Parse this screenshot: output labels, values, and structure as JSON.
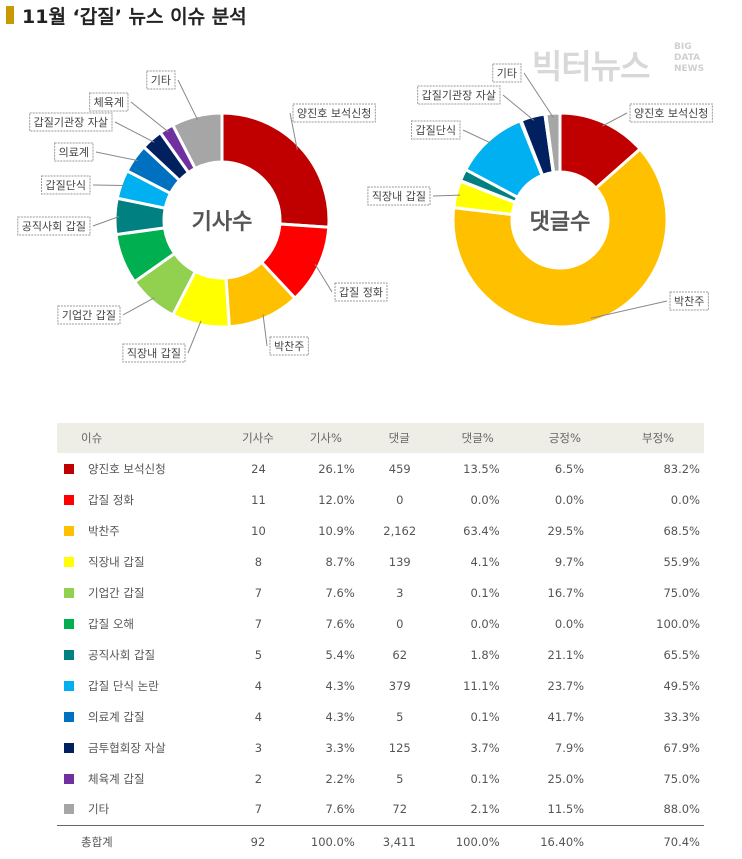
{
  "page": {
    "title": "11월 ‘갑질’ 뉴스 이슈 분석",
    "accent_color": "#c99a00",
    "logo": {
      "text": "빅터뉴스",
      "sub_lines": [
        "BIG",
        "DATA",
        "NEWS"
      ]
    }
  },
  "chart_data": [
    {
      "type": "pie",
      "title": "기사수",
      "donut": true,
      "labels": [
        "양진호 보석신청",
        "갑질 정화",
        "박찬주",
        "직장내 갑질",
        "기업간 갑질",
        "갑질 오해",
        "공직사회 갑질",
        "갑질단식",
        "의료계",
        "갑질기관장 자살",
        "체육계",
        "기타"
      ],
      "callouts": [
        "양진호 보석신청",
        "갑질 정화",
        "박찬주",
        "직장내 갑질",
        "기업간 갑질",
        null,
        "공직사회 갑질",
        "갑질단식",
        "의료계",
        "갑질기관장 자살",
        "체육계",
        "기타"
      ],
      "values": [
        24,
        11,
        10,
        8,
        7,
        7,
        5,
        4,
        4,
        3,
        2,
        7
      ],
      "colors": [
        "#c00000",
        "#ff0000",
        "#ffc000",
        "#ffff00",
        "#92d050",
        "#00b050",
        "#008080",
        "#00b0f0",
        "#0070c0",
        "#002060",
        "#7030a0",
        "#a6a6a6"
      ]
    },
    {
      "type": "pie",
      "title": "댓글수",
      "donut": true,
      "labels": [
        "양진호 보석신청",
        "갑질 정화",
        "박찬주",
        "직장내 갑질",
        "기업간 갑질",
        "갑질 오해",
        "공직사회 갑질",
        "갑질단식",
        "의료계",
        "갑질기관장 자살",
        "체육계",
        "기타"
      ],
      "callouts": [
        "양진호 보석신청",
        null,
        "박찬주",
        "직장내 갑질",
        null,
        null,
        null,
        "갑질단식",
        null,
        "갑질기관장 자살",
        null,
        "기타"
      ],
      "values": [
        459,
        0,
        2162,
        139,
        3,
        0,
        62,
        379,
        5,
        125,
        5,
        72
      ],
      "colors": [
        "#c00000",
        "#ff0000",
        "#ffc000",
        "#ffff00",
        "#92d050",
        "#00b050",
        "#008080",
        "#00b0f0",
        "#0070c0",
        "#002060",
        "#7030a0",
        "#a6a6a6"
      ]
    }
  ],
  "table": {
    "headers": [
      "이슈",
      "기사수",
      "기사%",
      "댓글",
      "댓글%",
      "긍정%",
      "부정%"
    ],
    "rows": [
      {
        "issue": "양진호 보석신청",
        "color": "#c00000",
        "count": "24",
        "count_pct": "26.1%",
        "replies": "459",
        "reply_pct": "13.5%",
        "pos": "6.5%",
        "neg": "83.2%"
      },
      {
        "issue": "갑질 정화",
        "color": "#ff0000",
        "count": "11",
        "count_pct": "12.0%",
        "replies": "0",
        "reply_pct": "0.0%",
        "pos": "0.0%",
        "neg": "0.0%"
      },
      {
        "issue": "박찬주",
        "color": "#ffc000",
        "count": "10",
        "count_pct": "10.9%",
        "replies": "2,162",
        "reply_pct": "63.4%",
        "pos": "29.5%",
        "neg": "68.5%"
      },
      {
        "issue": "직장내 갑질",
        "color": "#ffff00",
        "count": "8",
        "count_pct": "8.7%",
        "replies": "139",
        "reply_pct": "4.1%",
        "pos": "9.7%",
        "neg": "55.9%"
      },
      {
        "issue": "기업간 갑질",
        "color": "#92d050",
        "count": "7",
        "count_pct": "7.6%",
        "replies": "3",
        "reply_pct": "0.1%",
        "pos": "16.7%",
        "neg": "75.0%"
      },
      {
        "issue": "갑질 오해",
        "color": "#00b050",
        "count": "7",
        "count_pct": "7.6%",
        "replies": "0",
        "reply_pct": "0.0%",
        "pos": "0.0%",
        "neg": "100.0%"
      },
      {
        "issue": "공직사회 갑질",
        "color": "#008080",
        "count": "5",
        "count_pct": "5.4%",
        "replies": "62",
        "reply_pct": "1.8%",
        "pos": "21.1%",
        "neg": "65.5%"
      },
      {
        "issue": "갑질 단식 논란",
        "color": "#00b0f0",
        "count": "4",
        "count_pct": "4.3%",
        "replies": "379",
        "reply_pct": "11.1%",
        "pos": "23.7%",
        "neg": "49.5%"
      },
      {
        "issue": "의료계 갑질",
        "color": "#0070c0",
        "count": "4",
        "count_pct": "4.3%",
        "replies": "5",
        "reply_pct": "0.1%",
        "pos": "41.7%",
        "neg": "33.3%"
      },
      {
        "issue": "금투협회장 자살",
        "color": "#002060",
        "count": "3",
        "count_pct": "3.3%",
        "replies": "125",
        "reply_pct": "3.7%",
        "pos": "7.9%",
        "neg": "67.9%"
      },
      {
        "issue": "체육계 갑질",
        "color": "#7030a0",
        "count": "2",
        "count_pct": "2.2%",
        "replies": "5",
        "reply_pct": "0.1%",
        "pos": "25.0%",
        "neg": "75.0%"
      },
      {
        "issue": "기타",
        "color": "#a6a6a6",
        "count": "7",
        "count_pct": "7.6%",
        "replies": "72",
        "reply_pct": "2.1%",
        "pos": "11.5%",
        "neg": "88.0%"
      }
    ],
    "total": {
      "issue": "총합계",
      "count": "92",
      "count_pct": "100.0%",
      "replies": "3,411",
      "reply_pct": "100.0%",
      "pos": "16.40%",
      "neg": "70.4%"
    }
  }
}
